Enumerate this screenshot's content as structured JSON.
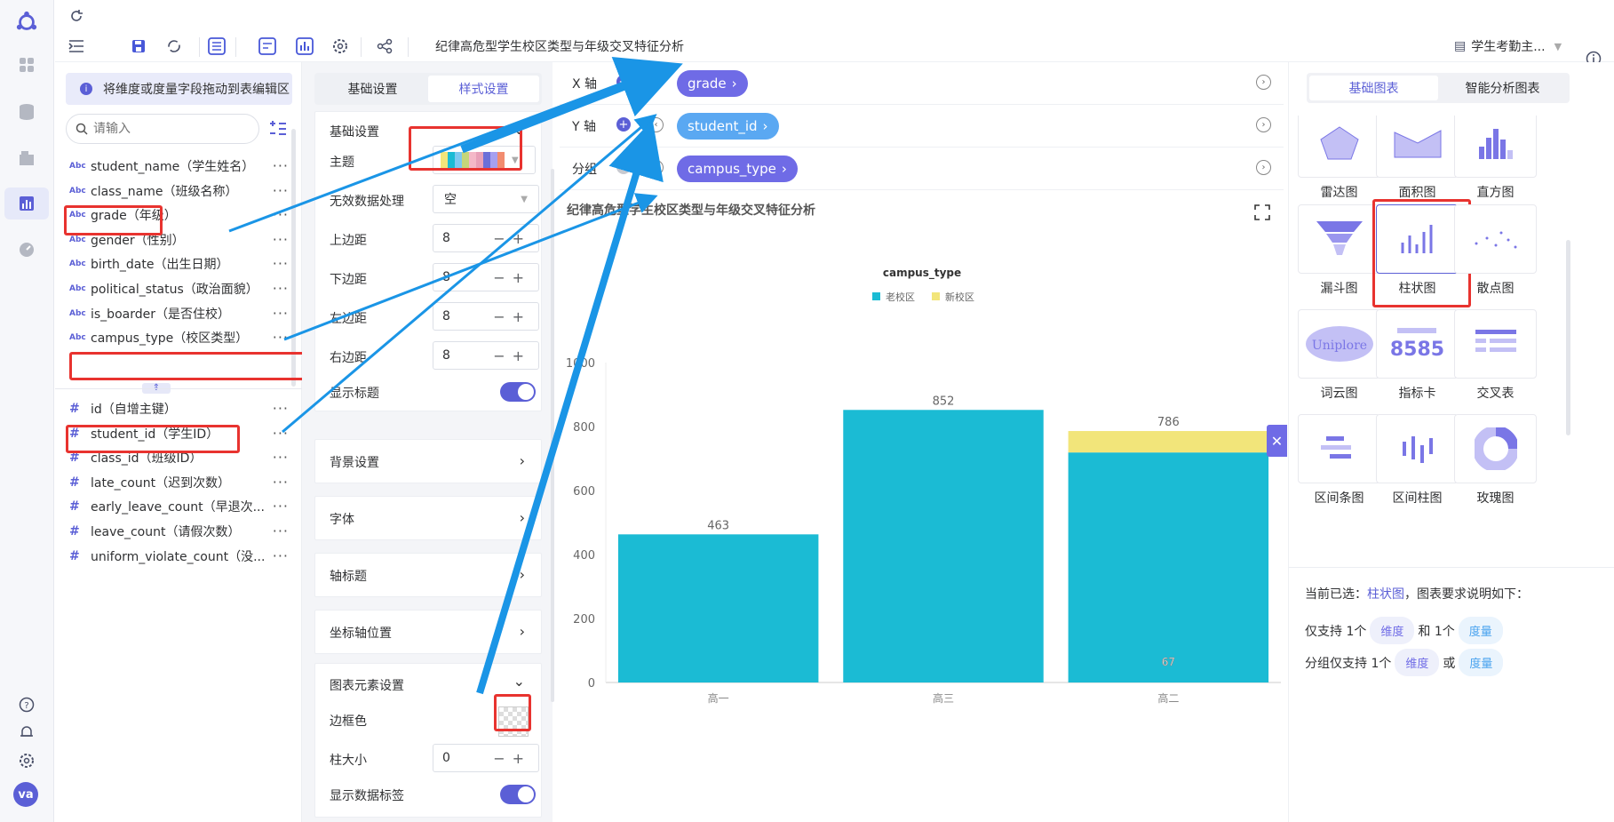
{
  "header": {
    "title": "纪律高危型学生校区类型与年级交叉特征分析",
    "dataset": "学生考勤主..."
  },
  "fields": {
    "tip": "将维度或度量字段拖动到表编辑区",
    "search_placeholder": "请输入",
    "dimensions": [
      {
        "tag": "Abc",
        "label": "student_name（学生姓名）"
      },
      {
        "tag": "Abc",
        "label": "class_name（班级名称）"
      },
      {
        "tag": "Abc",
        "label": "grade（年级）"
      },
      {
        "tag": "Abc",
        "label": "gender（性别）"
      },
      {
        "tag": "Abc",
        "label": "birth_date（出生日期）"
      },
      {
        "tag": "Abc",
        "label": "political_status（政治面貌）"
      },
      {
        "tag": "Abc",
        "label": "is_boarder（是否住校）"
      },
      {
        "tag": "Abc",
        "label": "campus_type（校区类型）"
      }
    ],
    "measures": [
      {
        "tag": "#",
        "label": "id（自增主键）"
      },
      {
        "tag": "#",
        "label": "student_id（学生ID）"
      },
      {
        "tag": "#",
        "label": "class_id（班级ID）"
      },
      {
        "tag": "#",
        "label": "late_count（迟到次数）"
      },
      {
        "tag": "#",
        "label": "early_leave_count（早退次..."
      },
      {
        "tag": "#",
        "label": "leave_count（请假次数）"
      },
      {
        "tag": "#",
        "label": "uniform_violate_count（没..."
      }
    ]
  },
  "style_panel": {
    "tab_basic": "基础设置",
    "tab_style": "样式设置",
    "section_basic": "基础设置",
    "theme_label": "主题",
    "invalid_label": "无效数据处理",
    "invalid_value": "空",
    "top_label": "上边距",
    "top_value": "8",
    "bottom_label": "下边距",
    "bottom_value": "8",
    "left_label": "左边距",
    "left_value": "8",
    "right_label": "右边距",
    "right_value": "8",
    "show_title_label": "显示标题",
    "background": "背景设置",
    "font": "字体",
    "axis_title": "轴标题",
    "axis_position": "坐标轴位置",
    "element_section": "图表元素设置",
    "border_color_label": "边框色",
    "bar_size_label": "柱大小",
    "bar_size_value": "0",
    "show_data_label": "显示数据标签"
  },
  "builder": {
    "x_label": "X 轴",
    "x_field": "grade",
    "y_label": "Y 轴",
    "y_field": "student_id",
    "group_label": "分组",
    "group_field": "campus_type"
  },
  "chart_data": {
    "type": "bar",
    "title": "纪律高危型学生校区类型与年级交叉特征分析",
    "legend_title": "campus_type",
    "categories": [
      "高一",
      "高三",
      "高二"
    ],
    "series": [
      {
        "name": "老校区",
        "values": [
          463,
          852,
          719
        ],
        "color": "#1bbbd4"
      },
      {
        "name": "新校区",
        "values": [
          0,
          0,
          67
        ],
        "color": "#f2e57a"
      }
    ],
    "bar_labels": [
      "463",
      "852",
      "786"
    ],
    "stack_labels": [
      "",
      "",
      "67"
    ],
    "ylim": [
      0,
      1000
    ],
    "yticks": [
      0,
      200,
      400,
      600,
      800,
      1000
    ],
    "legend_position": "top-center",
    "grid": false
  },
  "chart_types": {
    "tab_basic": "基础图表",
    "tab_smart": "智能分析图表",
    "items": [
      "雷达图",
      "面积图",
      "直方图",
      "漏斗图",
      "柱状图",
      "散点图",
      "词云图",
      "指标卡",
      "交叉表",
      "区间条图",
      "区间柱图",
      "玫瑰图"
    ],
    "kpi_value": "8585",
    "selected_prefix": "当前已选：",
    "selected": "柱状图",
    "selected_suffix": "，图表要求说明如下：",
    "req1_a": "仅支持 1个",
    "req1_dim": "维度",
    "req1_b": "和 1个",
    "req1_mea": "度量",
    "req2_a": "分组仅支持 1个",
    "req2_dim": "维度",
    "req2_b": "或",
    "req2_mea": "度量"
  },
  "colors": {
    "accent": "#5b5fd6",
    "bar_old": "#1bbbd4",
    "bar_new": "#f2e57a",
    "highlight": "#e8332f",
    "arrow": "#1a95e6"
  }
}
